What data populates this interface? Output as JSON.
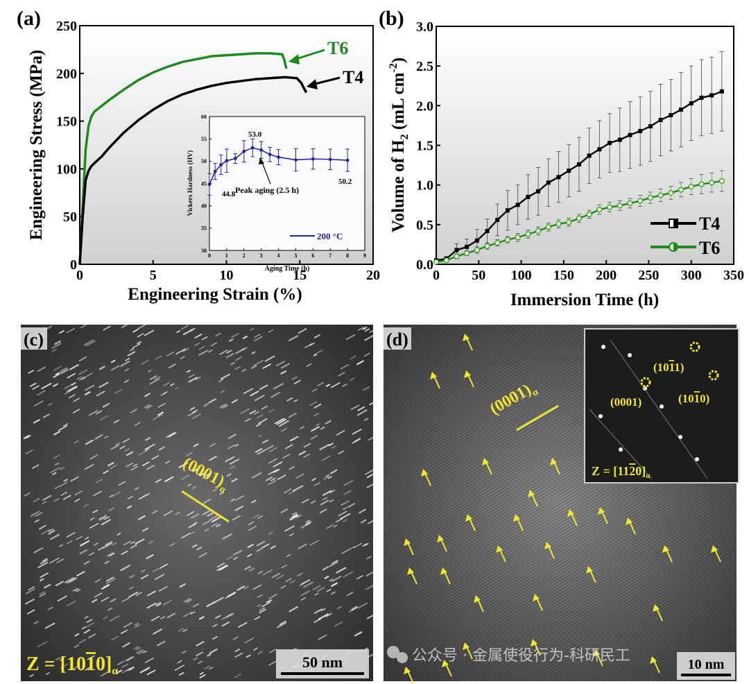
{
  "panels": {
    "a": "(a)",
    "b": "(b)",
    "c": "(c)",
    "d": "(d)"
  },
  "colors": {
    "T4": "#000000",
    "T6": "#1e8a1e",
    "inset": "#2323a0",
    "annotation": "#f2e530"
  },
  "chart_data": [
    {
      "panel": "a",
      "type": "line",
      "xlabel": "Engineering Strain (%)",
      "ylabel": "Engineering Stress (MPa)",
      "xlim": [
        0,
        20
      ],
      "ylim": [
        0,
        250
      ],
      "xticks": [
        "0",
        "5",
        "10",
        "15",
        "20"
      ],
      "yticks": [
        "0",
        "50",
        "100",
        "150",
        "200",
        "250"
      ],
      "background": "gradient",
      "series": [
        {
          "name": "T6",
          "color": "#1e8a1e",
          "x": [
            0,
            0.2,
            0.4,
            0.6,
            0.8,
            1.0,
            1.5,
            2,
            3,
            4,
            5,
            6,
            7,
            8,
            9,
            10,
            11,
            12,
            13,
            13.8,
            13.95,
            14.05,
            14.1
          ],
          "y": [
            0,
            60,
            120,
            145,
            155,
            160,
            166,
            172,
            183,
            193,
            201,
            207,
            212,
            215,
            218,
            219,
            220,
            221,
            221,
            220,
            214,
            207,
            205
          ]
        },
        {
          "name": "T4",
          "color": "#000000",
          "x": [
            0,
            0.2,
            0.4,
            0.6,
            0.8,
            1.0,
            1.5,
            2,
            3,
            4,
            5,
            6,
            7,
            8,
            9,
            10,
            11,
            12,
            13,
            14,
            14.8,
            15.1,
            15.3,
            15.45
          ],
          "y": [
            0,
            50,
            88,
            98,
            103,
            106,
            113,
            122,
            138,
            151,
            162,
            171,
            178,
            183,
            187,
            190,
            192,
            194,
            195,
            196,
            195,
            190,
            184,
            180
          ]
        }
      ],
      "annotations": [
        "T6",
        "T4"
      ],
      "inset": {
        "type": "line",
        "xlabel": "Aging Time (h)",
        "ylabel": "Vickers Hardness (HV)",
        "xlim": [
          0,
          9
        ],
        "ylim": [
          30,
          60
        ],
        "xticks": [
          "0",
          "1",
          "2",
          "3",
          "4",
          "5",
          "6",
          "7",
          "8",
          "9"
        ],
        "yticks": [
          "30",
          "35",
          "40",
          "45",
          "50",
          "55",
          "60"
        ],
        "legend": "200 °C",
        "legend_position": "bottom-right",
        "x": [
          0,
          0.33,
          0.67,
          1,
          1.5,
          2,
          2.5,
          3,
          3.5,
          4,
          5,
          6,
          7,
          8
        ],
        "y": [
          44.8,
          47.7,
          49.2,
          50.1,
          50.6,
          52.2,
          53.0,
          52.5,
          51.5,
          50.9,
          50.3,
          50.5,
          50.4,
          50.2
        ],
        "err": [
          2.4,
          1.8,
          2.2,
          2.6,
          1.1,
          2.4,
          2.0,
          1.9,
          1.6,
          1.7,
          2.5,
          2.3,
          2.3,
          2.5
        ],
        "labels": {
          "start": "44.8",
          "peak": "53.0",
          "end": "50.2",
          "peak_note": "Peak aging (2.5 h)"
        }
      }
    },
    {
      "panel": "b",
      "type": "line",
      "xlabel": "Immersion Time (h)",
      "ylabel": "Volume of H",
      "ylabel_sub": "2",
      "ylabel_unit": " (mL cm",
      "ylabel_sup": "-2",
      "ylabel_end": ")",
      "xlim": [
        0,
        350
      ],
      "ylim": [
        0,
        3.0
      ],
      "xticks": [
        "0",
        "50",
        "100",
        "150",
        "200",
        "250",
        "300",
        "350"
      ],
      "yticks": [
        "0.0",
        "0.5",
        "1.0",
        "1.5",
        "2.0",
        "2.5",
        "3.0"
      ],
      "legend_position": "bottom-right",
      "background": "gradient",
      "series": [
        {
          "name": "T4",
          "color": "#000000",
          "marker": "half-square",
          "x": [
            0,
            12,
            24,
            36,
            48,
            60,
            72,
            84,
            96,
            108,
            120,
            132,
            144,
            156,
            168,
            180,
            192,
            204,
            216,
            228,
            240,
            252,
            264,
            276,
            288,
            300,
            312,
            324,
            336
          ],
          "y": [
            0.05,
            0.07,
            0.18,
            0.22,
            0.3,
            0.42,
            0.56,
            0.68,
            0.75,
            0.85,
            0.92,
            1.03,
            1.1,
            1.18,
            1.26,
            1.37,
            1.45,
            1.53,
            1.57,
            1.63,
            1.68,
            1.74,
            1.82,
            1.88,
            1.95,
            2.03,
            2.1,
            2.13,
            2.18
          ],
          "err": [
            0.02,
            0.03,
            0.08,
            0.1,
            0.14,
            0.15,
            0.2,
            0.25,
            0.25,
            0.28,
            0.3,
            0.3,
            0.32,
            0.33,
            0.34,
            0.35,
            0.36,
            0.37,
            0.4,
            0.42,
            0.43,
            0.44,
            0.45,
            0.45,
            0.47,
            0.47,
            0.48,
            0.48,
            0.5
          ]
        },
        {
          "name": "T6",
          "color": "#1e8a1e",
          "marker": "half-circle",
          "x": [
            0,
            12,
            24,
            36,
            48,
            60,
            72,
            84,
            96,
            108,
            120,
            132,
            144,
            156,
            168,
            180,
            192,
            204,
            216,
            228,
            240,
            252,
            264,
            276,
            288,
            300,
            312,
            324,
            336
          ],
          "y": [
            0.03,
            0.05,
            0.1,
            0.14,
            0.18,
            0.23,
            0.27,
            0.31,
            0.34,
            0.38,
            0.42,
            0.47,
            0.51,
            0.53,
            0.58,
            0.63,
            0.69,
            0.72,
            0.74,
            0.77,
            0.8,
            0.84,
            0.87,
            0.9,
            0.94,
            0.98,
            1.01,
            1.03,
            1.05
          ],
          "err": [
            0.02,
            0.02,
            0.03,
            0.03,
            0.04,
            0.04,
            0.04,
            0.04,
            0.05,
            0.05,
            0.05,
            0.05,
            0.05,
            0.05,
            0.05,
            0.05,
            0.06,
            0.06,
            0.06,
            0.06,
            0.07,
            0.07,
            0.08,
            0.08,
            0.09,
            0.1,
            0.12,
            0.12,
            0.13
          ]
        }
      ]
    }
  ],
  "micrographs": {
    "c": {
      "plane": "(0001)",
      "plane_sub": "α",
      "zone": "Z = [10",
      "zone_bar": "1",
      "zone_end": "0]",
      "zone_sub": "α",
      "scale": "50 nm"
    },
    "d": {
      "plane": "(0001)",
      "plane_sub": "α",
      "scale": "10 nm",
      "inset": {
        "spot1": "(0001)",
        "spot2_a": "(10",
        "spot2_bar": "1",
        "spot2_b": "1)",
        "spot3_a": "(10",
        "spot3_bar": "1",
        "spot3_b": "0)",
        "zone_a": "Z = [11",
        "zone_bar": "2",
        "zone_b": "0]",
        "zone_sub": "α"
      }
    }
  },
  "watermark": "公众号 · 金属使役行为-科研民工"
}
